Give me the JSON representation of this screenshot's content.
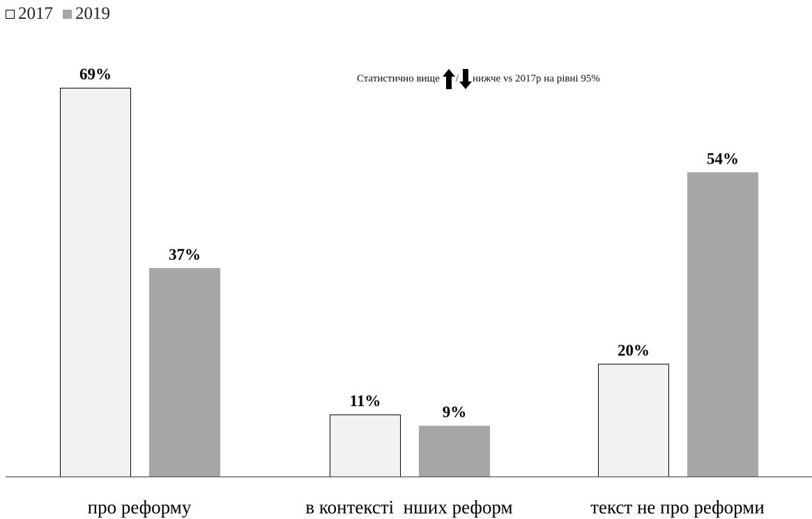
{
  "legend": [
    {
      "label": "2017",
      "color": "#f2f2f2",
      "border": "#000000"
    },
    {
      "label": "2019",
      "color": "#a6a6a6",
      "border": "#a6a6a6"
    }
  ],
  "note": {
    "text_before": "Статистично вище",
    "separator": "/",
    "text_after": "нижче vs 2017р на рівні 95%",
    "icons": [
      "arrow-up-icon",
      "arrow-down-icon"
    ]
  },
  "chart_data": {
    "type": "bar",
    "categories": [
      "про реформу",
      "в контексті  нших реформ",
      "текст не про реформи"
    ],
    "series": [
      {
        "name": "2017",
        "values": [
          69,
          11,
          20
        ],
        "color": "#f2f2f2",
        "stroke": "#000000"
      },
      {
        "name": "2019",
        "values": [
          37,
          9,
          54
        ],
        "color": "#a6a6a6",
        "stroke": "#a6a6a6"
      }
    ],
    "data_labels": [
      [
        "69%",
        "11%",
        "20%"
      ],
      [
        "37%",
        "9%",
        "54%"
      ]
    ],
    "ylim": [
      0,
      69
    ],
    "grid": false,
    "legend_position": "top-left",
    "xlabel": "",
    "ylabel": ""
  }
}
